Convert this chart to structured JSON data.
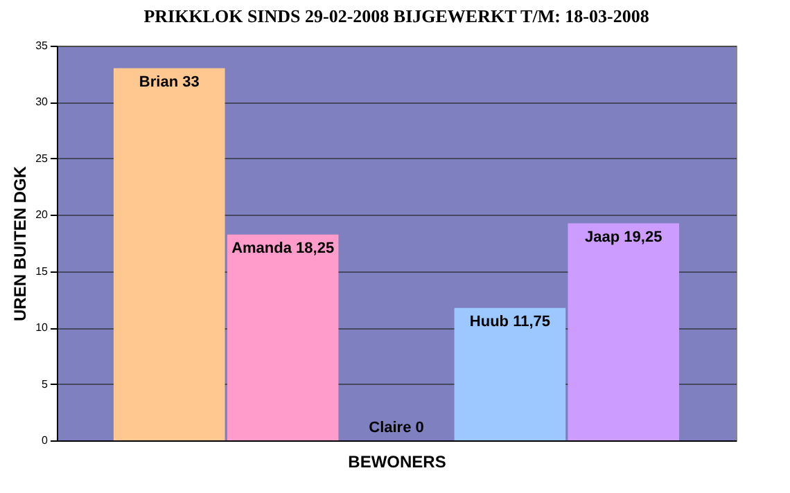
{
  "chart_data": {
    "type": "bar",
    "title": "PRIKKLOK SINDS 29-02-2008 BIJGEWERKT T/M: 18-03-2008",
    "xlabel": "BEWONERS",
    "ylabel": "UREN BUITEN DGK",
    "categories": [
      null,
      null,
      null,
      null,
      null
    ],
    "values": [
      33,
      18.25,
      0,
      11.75,
      19.25
    ],
    "colors": [
      "#ffc890",
      "#ff9ccc",
      "#d0d0ff",
      "#9cc8ff",
      "#cc9cff"
    ],
    "value_labels": [
      "Brian 33",
      "Amanda 18,25",
      "Claire 0",
      "Huub 11,75",
      "Jaap 19,25"
    ],
    "ylim": [
      0,
      35
    ],
    "yticks": [
      0,
      5,
      10,
      15,
      20,
      25,
      30,
      35
    ],
    "grid": "y",
    "tick_labels": "y",
    "legend": false
  }
}
